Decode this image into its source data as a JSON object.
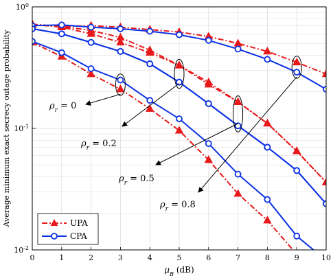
{
  "chart_data": {
    "type": "line",
    "title": "",
    "xlabel_base": "μ",
    "xlabel_sub": "B",
    "xlabel_unit": " (dB)",
    "ylabel": "Average minimum exact secrecy outage probability",
    "x": [
      0,
      1,
      2,
      3,
      4,
      5,
      6,
      7,
      8,
      9,
      10
    ],
    "xlim": [
      0,
      10
    ],
    "ylim": [
      0.01,
      1
    ],
    "yscale": "log",
    "y_ticks": [
      {
        "value": 0.01,
        "base": "10",
        "exp": "-2"
      },
      {
        "value": 0.1,
        "base": "10",
        "exp": "-1"
      },
      {
        "value": 1,
        "base": "10",
        "exp": "0"
      }
    ],
    "grid": true,
    "legend": {
      "placement": "bottom-left",
      "entries": [
        {
          "name": "UPA",
          "color": "#e8191a",
          "style": "dashdot",
          "marker": "triangle"
        },
        {
          "name": "CPA",
          "color": "#0a30e6",
          "style": "solid",
          "marker": "circle"
        }
      ]
    },
    "series": [
      {
        "group": "UPA",
        "rho": "0",
        "values": [
          0.72,
          0.69,
          0.7,
          0.68,
          0.65,
          0.62,
          0.57,
          0.5,
          0.43,
          0.35,
          0.28
        ]
      },
      {
        "group": "UPA",
        "rho": "0.2",
        "values": [
          0.71,
          0.69,
          0.64,
          0.56,
          0.44,
          0.33,
          0.23,
          0.165,
          0.11,
          0.065,
          0.036
        ]
      },
      {
        "group": "UPA",
        "rho": "0.5",
        "values": [
          0.72,
          0.68,
          0.6,
          0.51,
          0.42,
          0.33,
          0.24,
          0.165,
          0.11,
          0.065,
          0.036
        ]
      },
      {
        "group": "UPA",
        "rho": "0.8",
        "values": [
          0.51,
          0.39,
          0.28,
          0.21,
          0.145,
          0.096,
          0.055,
          0.029,
          0.0175,
          0.0092,
          0.006
        ]
      },
      {
        "group": "CPA",
        "rho": "0",
        "values": [
          0.7,
          0.71,
          0.68,
          0.66,
          0.63,
          0.59,
          0.53,
          0.45,
          0.37,
          0.29,
          0.21
        ]
      },
      {
        "group": "CPA",
        "rho": "0.2",
        "values": [
          0.66,
          0.6,
          0.51,
          0.43,
          0.34,
          0.24,
          0.16,
          0.105,
          0.07,
          0.045,
          0.024
        ]
      },
      {
        "group": "CPA",
        "rho": "0.5",
        "values": [
          0.66,
          0.6,
          0.51,
          0.43,
          0.34,
          0.24,
          0.16,
          0.105,
          0.07,
          0.045,
          0.024
        ]
      },
      {
        "group": "CPA",
        "rho": "0.8",
        "values": [
          0.52,
          0.42,
          0.31,
          0.25,
          0.17,
          0.12,
          0.075,
          0.042,
          0.026,
          0.013,
          0.0082
        ]
      }
    ],
    "annotations": [
      {
        "prefix": "ρ",
        "sub": "r",
        "text": " = 0"
      },
      {
        "prefix": "ρ",
        "sub": "r",
        "text": " = 0.2"
      },
      {
        "prefix": "ρ",
        "sub": "r",
        "text": " = 0.5"
      },
      {
        "prefix": "ρ",
        "sub": "r",
        "text": " = 0.8"
      }
    ]
  }
}
